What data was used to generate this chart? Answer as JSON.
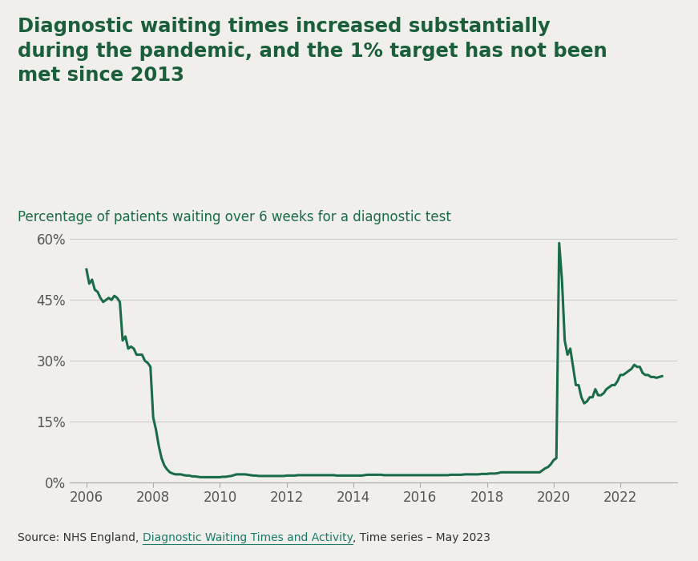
{
  "title": "Diagnostic waiting times increased substantially\nduring the pandemic, and the 1% target has not been\nmet since 2013",
  "subtitle": "Percentage of patients waiting over 6 weeks for a diagnostic test",
  "source_text": "Source: NHS England, ",
  "source_link": "Diagnostic Waiting Times and Activity",
  "source_suffix": ", Time series – May 2023",
  "line_color": "#1a6b4a",
  "background_color": "#f0efeb",
  "title_color": "#1a5e3a",
  "subtitle_color": "#1a6b4a",
  "source_link_color": "#1a7a6a",
  "ylim": [
    0,
    0.65
  ],
  "yticks": [
    0,
    0.15,
    0.3,
    0.45,
    0.6
  ],
  "ytick_labels": [
    "0%",
    "15%",
    "30%",
    "45%",
    "60%"
  ],
  "xtick_years": [
    2006,
    2008,
    2010,
    2012,
    2014,
    2016,
    2018,
    2020,
    2022
  ],
  "xlim": [
    2005.5,
    2023.7
  ],
  "line_width": 2.2,
  "data": [
    [
      2006.0,
      0.525
    ],
    [
      2006.083,
      0.49
    ],
    [
      2006.167,
      0.5
    ],
    [
      2006.25,
      0.475
    ],
    [
      2006.333,
      0.47
    ],
    [
      2006.417,
      0.455
    ],
    [
      2006.5,
      0.445
    ],
    [
      2006.583,
      0.45
    ],
    [
      2006.667,
      0.455
    ],
    [
      2006.75,
      0.45
    ],
    [
      2006.833,
      0.46
    ],
    [
      2006.917,
      0.455
    ],
    [
      2007.0,
      0.445
    ],
    [
      2007.083,
      0.35
    ],
    [
      2007.167,
      0.36
    ],
    [
      2007.25,
      0.33
    ],
    [
      2007.333,
      0.335
    ],
    [
      2007.417,
      0.33
    ],
    [
      2007.5,
      0.315
    ],
    [
      2007.583,
      0.315
    ],
    [
      2007.667,
      0.315
    ],
    [
      2007.75,
      0.3
    ],
    [
      2007.833,
      0.295
    ],
    [
      2007.917,
      0.285
    ],
    [
      2008.0,
      0.16
    ],
    [
      2008.083,
      0.13
    ],
    [
      2008.167,
      0.09
    ],
    [
      2008.25,
      0.06
    ],
    [
      2008.333,
      0.042
    ],
    [
      2008.417,
      0.032
    ],
    [
      2008.5,
      0.025
    ],
    [
      2008.583,
      0.022
    ],
    [
      2008.667,
      0.02
    ],
    [
      2008.75,
      0.02
    ],
    [
      2008.833,
      0.02
    ],
    [
      2008.917,
      0.018
    ],
    [
      2009.0,
      0.017
    ],
    [
      2009.083,
      0.017
    ],
    [
      2009.167,
      0.015
    ],
    [
      2009.25,
      0.015
    ],
    [
      2009.333,
      0.014
    ],
    [
      2009.417,
      0.013
    ],
    [
      2009.5,
      0.013
    ],
    [
      2009.583,
      0.013
    ],
    [
      2009.667,
      0.013
    ],
    [
      2009.75,
      0.013
    ],
    [
      2009.833,
      0.013
    ],
    [
      2009.917,
      0.013
    ],
    [
      2010.0,
      0.013
    ],
    [
      2010.083,
      0.014
    ],
    [
      2010.167,
      0.014
    ],
    [
      2010.25,
      0.015
    ],
    [
      2010.333,
      0.016
    ],
    [
      2010.417,
      0.018
    ],
    [
      2010.5,
      0.02
    ],
    [
      2010.583,
      0.02
    ],
    [
      2010.667,
      0.02
    ],
    [
      2010.75,
      0.02
    ],
    [
      2010.833,
      0.019
    ],
    [
      2010.917,
      0.018
    ],
    [
      2011.0,
      0.017
    ],
    [
      2011.083,
      0.017
    ],
    [
      2011.167,
      0.016
    ],
    [
      2011.25,
      0.016
    ],
    [
      2011.333,
      0.016
    ],
    [
      2011.417,
      0.016
    ],
    [
      2011.5,
      0.016
    ],
    [
      2011.583,
      0.016
    ],
    [
      2011.667,
      0.016
    ],
    [
      2011.75,
      0.016
    ],
    [
      2011.833,
      0.016
    ],
    [
      2011.917,
      0.016
    ],
    [
      2012.0,
      0.017
    ],
    [
      2012.083,
      0.017
    ],
    [
      2012.167,
      0.017
    ],
    [
      2012.25,
      0.017
    ],
    [
      2012.333,
      0.018
    ],
    [
      2012.417,
      0.018
    ],
    [
      2012.5,
      0.018
    ],
    [
      2012.583,
      0.018
    ],
    [
      2012.667,
      0.018
    ],
    [
      2012.75,
      0.018
    ],
    [
      2012.833,
      0.018
    ],
    [
      2012.917,
      0.018
    ],
    [
      2013.0,
      0.018
    ],
    [
      2013.083,
      0.018
    ],
    [
      2013.167,
      0.018
    ],
    [
      2013.25,
      0.018
    ],
    [
      2013.333,
      0.018
    ],
    [
      2013.417,
      0.018
    ],
    [
      2013.5,
      0.017
    ],
    [
      2013.583,
      0.017
    ],
    [
      2013.667,
      0.017
    ],
    [
      2013.75,
      0.017
    ],
    [
      2013.833,
      0.017
    ],
    [
      2013.917,
      0.017
    ],
    [
      2014.0,
      0.017
    ],
    [
      2014.083,
      0.017
    ],
    [
      2014.167,
      0.017
    ],
    [
      2014.25,
      0.017
    ],
    [
      2014.333,
      0.018
    ],
    [
      2014.417,
      0.019
    ],
    [
      2014.5,
      0.019
    ],
    [
      2014.583,
      0.019
    ],
    [
      2014.667,
      0.019
    ],
    [
      2014.75,
      0.019
    ],
    [
      2014.833,
      0.019
    ],
    [
      2014.917,
      0.018
    ],
    [
      2015.0,
      0.018
    ],
    [
      2015.083,
      0.018
    ],
    [
      2015.167,
      0.018
    ],
    [
      2015.25,
      0.018
    ],
    [
      2015.333,
      0.018
    ],
    [
      2015.417,
      0.018
    ],
    [
      2015.5,
      0.018
    ],
    [
      2015.583,
      0.018
    ],
    [
      2015.667,
      0.018
    ],
    [
      2015.75,
      0.018
    ],
    [
      2015.833,
      0.018
    ],
    [
      2015.917,
      0.018
    ],
    [
      2016.0,
      0.018
    ],
    [
      2016.083,
      0.018
    ],
    [
      2016.167,
      0.018
    ],
    [
      2016.25,
      0.018
    ],
    [
      2016.333,
      0.018
    ],
    [
      2016.417,
      0.018
    ],
    [
      2016.5,
      0.018
    ],
    [
      2016.583,
      0.018
    ],
    [
      2016.667,
      0.018
    ],
    [
      2016.75,
      0.018
    ],
    [
      2016.833,
      0.018
    ],
    [
      2016.917,
      0.019
    ],
    [
      2017.0,
      0.019
    ],
    [
      2017.083,
      0.019
    ],
    [
      2017.167,
      0.019
    ],
    [
      2017.25,
      0.019
    ],
    [
      2017.333,
      0.02
    ],
    [
      2017.417,
      0.02
    ],
    [
      2017.5,
      0.02
    ],
    [
      2017.583,
      0.02
    ],
    [
      2017.667,
      0.02
    ],
    [
      2017.75,
      0.02
    ],
    [
      2017.833,
      0.021
    ],
    [
      2017.917,
      0.021
    ],
    [
      2018.0,
      0.021
    ],
    [
      2018.083,
      0.022
    ],
    [
      2018.167,
      0.022
    ],
    [
      2018.25,
      0.022
    ],
    [
      2018.333,
      0.023
    ],
    [
      2018.417,
      0.025
    ],
    [
      2018.5,
      0.025
    ],
    [
      2018.583,
      0.025
    ],
    [
      2018.667,
      0.025
    ],
    [
      2018.75,
      0.025
    ],
    [
      2018.833,
      0.025
    ],
    [
      2018.917,
      0.025
    ],
    [
      2019.0,
      0.025
    ],
    [
      2019.083,
      0.025
    ],
    [
      2019.167,
      0.025
    ],
    [
      2019.25,
      0.025
    ],
    [
      2019.333,
      0.025
    ],
    [
      2019.417,
      0.025
    ],
    [
      2019.5,
      0.025
    ],
    [
      2019.583,
      0.025
    ],
    [
      2019.667,
      0.03
    ],
    [
      2019.75,
      0.035
    ],
    [
      2019.833,
      0.038
    ],
    [
      2019.917,
      0.045
    ],
    [
      2020.0,
      0.055
    ],
    [
      2020.083,
      0.06
    ],
    [
      2020.167,
      0.59
    ],
    [
      2020.25,
      0.5
    ],
    [
      2020.333,
      0.35
    ],
    [
      2020.417,
      0.315
    ],
    [
      2020.5,
      0.33
    ],
    [
      2020.583,
      0.285
    ],
    [
      2020.667,
      0.24
    ],
    [
      2020.75,
      0.24
    ],
    [
      2020.833,
      0.21
    ],
    [
      2020.917,
      0.195
    ],
    [
      2021.0,
      0.2
    ],
    [
      2021.083,
      0.21
    ],
    [
      2021.167,
      0.21
    ],
    [
      2021.25,
      0.23
    ],
    [
      2021.333,
      0.215
    ],
    [
      2021.417,
      0.215
    ],
    [
      2021.5,
      0.22
    ],
    [
      2021.583,
      0.23
    ],
    [
      2021.667,
      0.235
    ],
    [
      2021.75,
      0.24
    ],
    [
      2021.833,
      0.24
    ],
    [
      2021.917,
      0.25
    ],
    [
      2022.0,
      0.265
    ],
    [
      2022.083,
      0.265
    ],
    [
      2022.167,
      0.27
    ],
    [
      2022.25,
      0.275
    ],
    [
      2022.333,
      0.28
    ],
    [
      2022.417,
      0.29
    ],
    [
      2022.5,
      0.285
    ],
    [
      2022.583,
      0.285
    ],
    [
      2022.667,
      0.27
    ],
    [
      2022.75,
      0.265
    ],
    [
      2022.833,
      0.265
    ],
    [
      2022.917,
      0.26
    ],
    [
      2023.0,
      0.26
    ],
    [
      2023.083,
      0.258
    ],
    [
      2023.167,
      0.26
    ],
    [
      2023.25,
      0.262
    ]
  ]
}
